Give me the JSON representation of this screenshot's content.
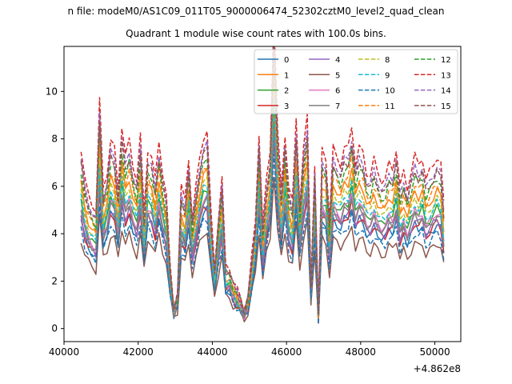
{
  "chart_data": {
    "type": "line",
    "title": "n file: modeM0/AS1C09_011T05_9000006474_52302cztM0_level2_quad_clean",
    "subtitle": "Quadrant 1 module wise count rates with 100.0s bins.",
    "x_offset_label": "+4.862e8",
    "xlim": [
      40000,
      50700
    ],
    "ylim": [
      -0.55,
      11.9
    ],
    "x_ticks": [
      40000,
      42000,
      44000,
      46000,
      48000,
      50000
    ],
    "x_tick_labels": [
      "40000",
      "42000",
      "44000",
      "46000",
      "48000",
      "50000"
    ],
    "y_ticks": [
      0,
      2,
      4,
      6,
      8,
      10
    ],
    "y_tick_labels": [
      "0",
      "2",
      "4",
      "6",
      "8",
      "10"
    ],
    "legend": {
      "placement": "top-right",
      "columns": 4
    },
    "x": [
      40460,
      40560,
      40660,
      40760,
      40860,
      40960,
      41060,
      41160,
      41260,
      41360,
      41460,
      41560,
      41660,
      41760,
      41860,
      41960,
      42060,
      42160,
      42260,
      42360,
      42460,
      42560,
      42660,
      42760,
      42860,
      42960,
      43060,
      43160,
      43260,
      43360,
      43460,
      43560,
      43660,
      43760,
      43860,
      43960,
      44060,
      44160,
      44260,
      44360,
      44460,
      44560,
      44660,
      44760,
      44860,
      44960,
      45060,
      45160,
      45260,
      45360,
      45460,
      45560,
      45660,
      45760,
      45860,
      45960,
      46060,
      46160,
      46260,
      46360,
      46460,
      46560,
      46660,
      46760,
      46860,
      46960,
      47060,
      47160,
      47260,
      47360,
      47460,
      47560,
      47660,
      47760,
      47860,
      47960,
      48060,
      48160,
      48260,
      48360,
      48460,
      48560,
      48660,
      48760,
      48860,
      48960,
      49060,
      49160,
      49260,
      49360,
      49460,
      49560,
      49660,
      49760,
      49860,
      49960,
      50060,
      50160,
      50240
    ],
    "base": [
      4.6,
      3.8,
      3.4,
      3.2,
      3.0,
      5.8,
      3.6,
      4.0,
      4.8,
      4.6,
      3.6,
      5.2,
      4.4,
      4.8,
      4.2,
      3.8,
      4.9,
      3.0,
      4.6,
      4.4,
      3.8,
      4.8,
      4.0,
      3.4,
      1.6,
      0.6,
      0.9,
      3.6,
      3.3,
      4.4,
      2.8,
      3.6,
      4.4,
      4.9,
      5.0,
      3.0,
      1.6,
      2.8,
      3.8,
      1.6,
      1.6,
      1.2,
      1.0,
      0.8,
      0.5,
      0.8,
      1.8,
      2.8,
      5.0,
      2.6,
      3.8,
      4.6,
      8.0,
      5.0,
      3.6,
      5.0,
      3.6,
      3.2,
      5.4,
      3.2,
      4.6,
      5.4,
      1.2,
      4.2,
      0.4,
      4.6,
      4.4,
      2.8,
      4.6,
      4.4,
      4.2,
      4.6,
      4.6,
      5.2,
      4.2,
      4.6,
      4.5,
      4.0,
      3.9,
      4.3,
      4.0,
      3.8,
      3.8,
      4.2,
      4.1,
      4.6,
      3.6,
      4.0,
      3.6,
      4.0,
      4.4,
      4.2,
      4.4,
      3.8,
      4.0,
      4.2,
      4.4,
      4.2,
      3.2
    ],
    "series": [
      {
        "name": "0",
        "color": "#1f77b4",
        "dash": "solid",
        "scale": 1.0
      },
      {
        "name": "1",
        "color": "#ff7f0e",
        "dash": "solid",
        "scale": 1.32
      },
      {
        "name": "2",
        "color": "#2ca02c",
        "dash": "solid",
        "scale": 1.15
      },
      {
        "name": "3",
        "color": "#d62728",
        "dash": "solid",
        "scale": 1.02
      },
      {
        "name": "4",
        "color": "#9467bd",
        "dash": "solid",
        "scale": 1.05
      },
      {
        "name": "5",
        "color": "#8c564b",
        "dash": "solid",
        "scale": 0.82
      },
      {
        "name": "6",
        "color": "#e377c2",
        "dash": "solid",
        "scale": 1.12
      },
      {
        "name": "7",
        "color": "#7f7f7f",
        "dash": "solid",
        "scale": 1.08
      },
      {
        "name": "8",
        "color": "#bcbd22",
        "dash": "dashed",
        "scale": 1.25
      },
      {
        "name": "9",
        "color": "#17becf",
        "dash": "dashed",
        "scale": 1.2
      },
      {
        "name": "10",
        "color": "#1f77b4",
        "dash": "dashed",
        "scale": 0.92
      },
      {
        "name": "11",
        "color": "#ff7f0e",
        "dash": "dashed",
        "scale": 1.38
      },
      {
        "name": "12",
        "color": "#2ca02c",
        "dash": "dashed",
        "scale": 1.45
      },
      {
        "name": "13",
        "color": "#d62728",
        "dash": "dashed",
        "scale": 1.65
      },
      {
        "name": "14",
        "color": "#9467bd",
        "dash": "dashed",
        "scale": 1.55
      },
      {
        "name": "15",
        "color": "#8c564b",
        "dash": "dashed",
        "scale": 1.5
      }
    ]
  }
}
